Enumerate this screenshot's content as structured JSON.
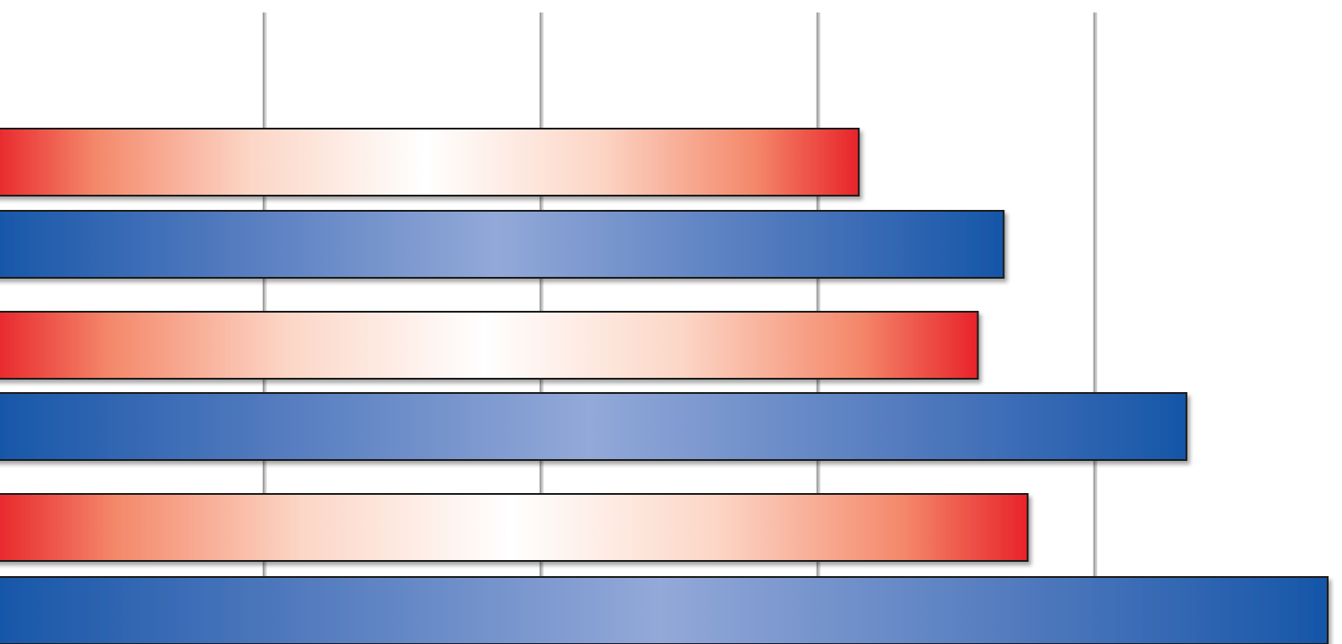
{
  "chart_data": {
    "type": "bar",
    "orientation": "horizontal",
    "axis": {
      "xlim": [
        0,
        15
      ],
      "gridline_values": [
        3,
        6,
        9,
        12
      ]
    },
    "series": [
      {
        "color": "red-white-gradient",
        "values": [
          9.45,
          10.74,
          11.28
        ]
      },
      {
        "color": "blue-gradient",
        "values": [
          11.02,
          13.0,
          14.53
        ]
      }
    ],
    "bar_order": [
      {
        "series": 0,
        "index": 0
      },
      {
        "series": 1,
        "index": 0
      },
      {
        "series": 0,
        "index": 1
      },
      {
        "series": 1,
        "index": 1
      },
      {
        "series": 0,
        "index": 2
      },
      {
        "series": 1,
        "index": 2
      }
    ],
    "grid": true,
    "legend": "none",
    "colors": {
      "red_edge": "#e8232a",
      "red_mid": "#f4886a",
      "red_center": "#ffffff",
      "blue_edge": "#1656a8",
      "blue_mid": "#4f78bd",
      "blue_center": "#93a9d8",
      "gridline": "#5a5a5a",
      "bar_outline": "#1a1a1a"
    }
  }
}
